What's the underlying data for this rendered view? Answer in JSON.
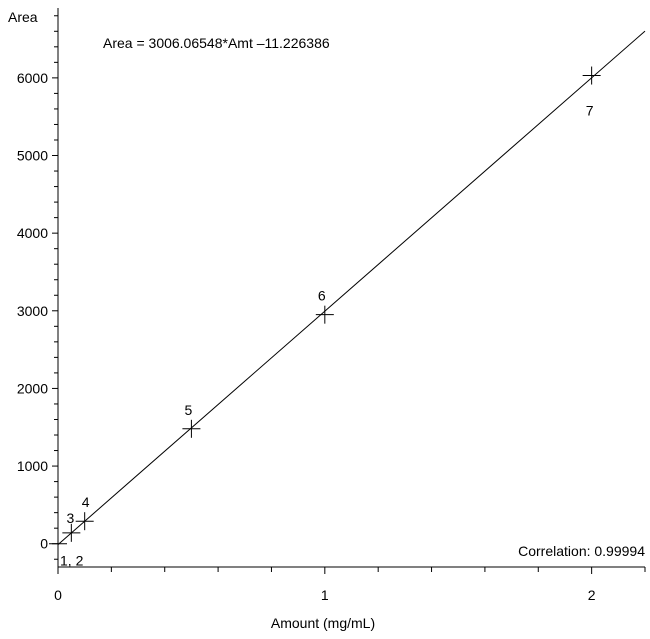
{
  "chart_data": {
    "type": "scatter",
    "title": "",
    "equation_label": "Area = 3006.06548*Amt –11.226386",
    "correlation_label": "Correlation: 0.99994",
    "xlabel": "Amount (mg/mL)",
    "ylabel": "Area",
    "xlim": [
      0,
      2.2
    ],
    "ylim": [
      -300,
      6900
    ],
    "x_ticks": [
      0,
      1,
      2
    ],
    "y_ticks": [
      0,
      1000,
      2000,
      3000,
      4000,
      5000,
      6000
    ],
    "grid": false,
    "fit_line": {
      "slope": 3006.06548,
      "intercept": -11.226386
    },
    "series": [
      {
        "points": [
          {
            "label": "1, 2",
            "x": 0.0,
            "y": 0
          },
          {
            "label": "3",
            "x": 0.05,
            "y": 140
          },
          {
            "label": "4",
            "x": 0.1,
            "y": 290
          },
          {
            "label": "5",
            "x": 0.5,
            "y": 1480
          },
          {
            "label": "6",
            "x": 1.0,
            "y": 2950
          },
          {
            "label": "7",
            "x": 2.0,
            "y": 6030
          }
        ]
      }
    ]
  }
}
